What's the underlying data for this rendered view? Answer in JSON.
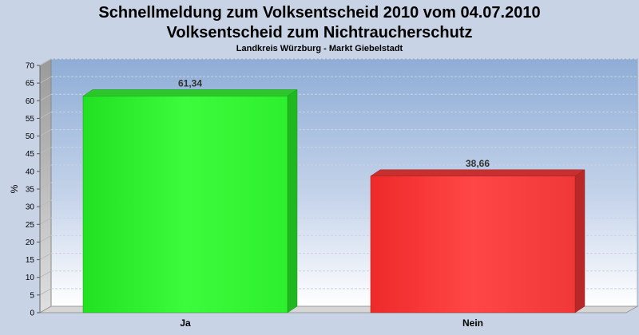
{
  "chart_data": {
    "type": "bar",
    "title": "Schnellmeldung zum Volksentscheid 2010 vom 04.07.2010",
    "subtitle": "Volksentscheid zum Nichtraucherschutz",
    "subtitle2": "Landkreis Würzburg - Markt Giebelstadt",
    "ylabel": "%",
    "xlabel": "",
    "ylim": [
      0,
      70
    ],
    "ytick_step": 5,
    "categories": [
      "Ja",
      "Nein"
    ],
    "values": [
      61.34,
      38.66
    ],
    "data_labels": [
      "61,34",
      "38,66"
    ],
    "colors": [
      "#33ee33",
      "#ee3333"
    ],
    "grid": true,
    "legend": "none"
  }
}
